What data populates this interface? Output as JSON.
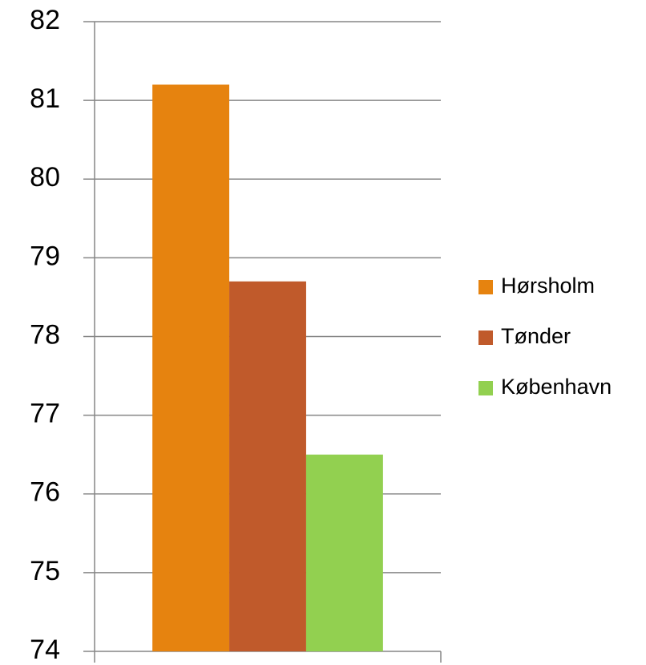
{
  "chart_data": {
    "type": "bar",
    "categories": [
      null
    ],
    "series": [
      {
        "name": "Hørsholm",
        "color": "#e6830f",
        "values": [
          81.2
        ]
      },
      {
        "name": "Tønder",
        "color": "#c05a2b",
        "values": [
          78.7
        ]
      },
      {
        "name": "København",
        "color": "#92d050",
        "values": [
          76.5
        ]
      }
    ],
    "ylim": [
      74,
      82
    ],
    "yticks": [
      74,
      75,
      76,
      77,
      78,
      79,
      80,
      81,
      82
    ],
    "grid": true,
    "legend": "right"
  }
}
